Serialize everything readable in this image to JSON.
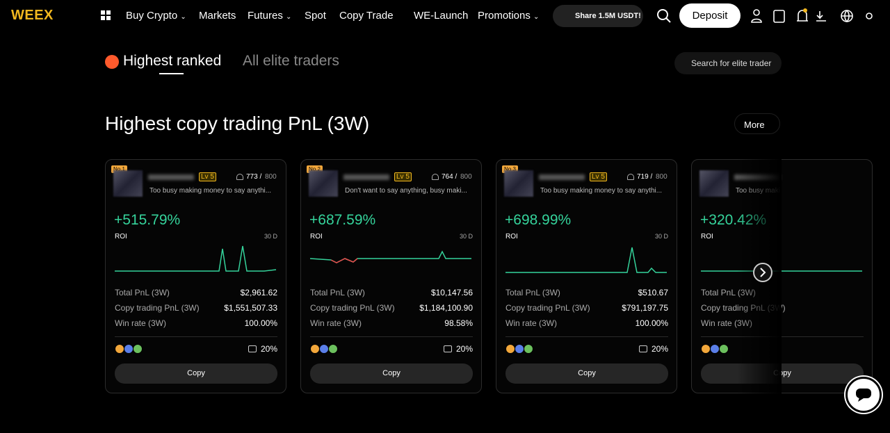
{
  "nav": {
    "logo": "WEEX",
    "items": [
      "Buy Crypto",
      "Markets",
      "Futures",
      "Spot",
      "Copy Trade",
      "WE-Launch",
      "Promotions"
    ],
    "promo": "Share 1.5M USDT!",
    "deposit": "Deposit"
  },
  "tabs": [
    "Highest ranked",
    "All elite traders"
  ],
  "search": "Search for elite trader",
  "section": {
    "title": "Highest copy trading PnL (3W)",
    "more": "More"
  },
  "cards": [
    {
      "rank": "No.1",
      "level": "Lv 5",
      "followers": "773 /",
      "capacity": "800",
      "bio": "Too busy making money to say anythi...",
      "roi": "+515.79%",
      "roi_label": "ROI",
      "period": "30 D",
      "stats": [
        {
          "label": "Total PnL (3W)",
          "value": "$2,961.62"
        },
        {
          "label": "Copy trading PnL (3W)",
          "value": "$1,551,507.33"
        },
        {
          "label": "Win rate (3W)",
          "value": "100.00%"
        }
      ],
      "share": "20%",
      "button": "Copy"
    },
    {
      "rank": "No.2",
      "level": "Lv 5",
      "followers": "764 /",
      "capacity": "800",
      "bio": "Don't want to say anything, busy maki...",
      "roi": "+687.59%",
      "roi_label": "ROI",
      "period": "30 D",
      "stats": [
        {
          "label": "Total PnL (3W)",
          "value": "$10,147.56"
        },
        {
          "label": "Copy trading PnL (3W)",
          "value": "$1,184,100.90"
        },
        {
          "label": "Win rate (3W)",
          "value": "98.58%"
        }
      ],
      "share": "20%",
      "button": "Copy"
    },
    {
      "rank": "No.3",
      "level": "Lv 5",
      "followers": "719 /",
      "capacity": "800",
      "bio": "Too busy making money to say anythi...",
      "roi": "+698.99%",
      "roi_label": "ROI",
      "period": "30 D",
      "stats": [
        {
          "label": "Total PnL (3W)",
          "value": "$510.67"
        },
        {
          "label": "Copy trading PnL (3W)",
          "value": "$791,197.75"
        },
        {
          "label": "Win rate (3W)",
          "value": "100.00%"
        }
      ],
      "share": "20%",
      "button": "Copy"
    },
    {
      "bio": "Too busy maki",
      "roi": "+320.42%",
      "roi_label": "ROI",
      "stats": [
        {
          "label": "Total PnL (3W)"
        },
        {
          "label": "Copy trading PnL (3W)"
        },
        {
          "label": "Win rate (3W)"
        }
      ],
      "button": "Copy"
    }
  ]
}
